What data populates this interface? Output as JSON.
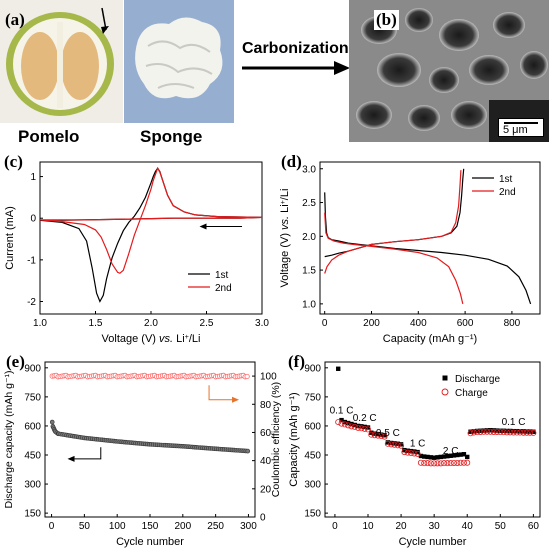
{
  "panels": {
    "a": {
      "label": "(a)",
      "caption_left": "Pomelo",
      "caption_right": "Sponge"
    },
    "arrow": {
      "text": "Carbonization"
    },
    "b": {
      "label": "(b)",
      "scale_bar": "5 μm"
    }
  },
  "chart_data": [
    {
      "id": "c",
      "type": "line",
      "panel_label": "(c)",
      "xlabel_main": "Voltage (V) ",
      "xlabel_vs": "vs.",
      "xlabel_tail": " Li",
      "xlabel_sup": "+",
      "xlabel_end": "/Li",
      "ylabel": "Current (mA)",
      "xlim": [
        1.0,
        3.0
      ],
      "ylim": [
        -2.3,
        1.35
      ],
      "xticks": [
        1.0,
        1.5,
        2.0,
        2.5,
        3.0
      ],
      "xtick_labels": [
        "1.0",
        "1.5",
        "2.0",
        "2.5",
        "3.0"
      ],
      "yticks": [
        -2,
        -1,
        0,
        1
      ],
      "ytick_labels": [
        "-2",
        "-1",
        "0",
        "1"
      ],
      "legend": "bottom-right",
      "scan_direction_arrow": "left",
      "series": [
        {
          "name": "1st",
          "color": "#000000",
          "x": [
            1.0,
            1.2,
            1.35,
            1.42,
            1.47,
            1.51,
            1.54,
            1.57,
            1.6,
            1.65,
            1.7,
            1.75,
            1.8,
            1.85,
            1.9,
            1.95,
            2.0,
            2.02,
            2.04,
            2.06,
            2.08,
            2.1,
            2.15,
            2.2,
            2.3,
            2.4,
            2.6,
            2.8,
            3.0,
            2.8,
            2.6,
            2.4,
            2.2,
            2.0,
            1.8,
            1.6,
            1.4,
            1.2,
            1.0
          ],
          "y": [
            -0.05,
            -0.1,
            -0.25,
            -0.55,
            -1.2,
            -1.8,
            -2.0,
            -1.85,
            -1.45,
            -0.95,
            -0.6,
            -0.3,
            -0.1,
            0.05,
            0.25,
            0.5,
            0.85,
            1.0,
            1.12,
            1.2,
            1.12,
            0.95,
            0.55,
            0.3,
            0.15,
            0.08,
            0.04,
            0.03,
            0.02,
            0.0,
            0.0,
            0.0,
            0.0,
            -0.01,
            -0.02,
            -0.03,
            -0.04,
            -0.05,
            -0.05
          ]
        },
        {
          "name": "2nd",
          "color": "#e41a1c",
          "x": [
            1.0,
            1.2,
            1.4,
            1.5,
            1.55,
            1.6,
            1.65,
            1.7,
            1.72,
            1.75,
            1.8,
            1.85,
            1.9,
            1.95,
            2.0,
            2.02,
            2.04,
            2.06,
            2.08,
            2.1,
            2.15,
            2.2,
            2.3,
            2.4,
            2.6,
            2.8,
            3.0,
            2.8,
            2.6,
            2.4,
            2.2,
            2.0,
            1.8,
            1.6,
            1.4,
            1.2,
            1.0
          ],
          "y": [
            -0.04,
            -0.08,
            -0.15,
            -0.28,
            -0.45,
            -0.75,
            -1.1,
            -1.3,
            -1.32,
            -1.25,
            -0.85,
            -0.4,
            -0.05,
            0.3,
            0.7,
            0.9,
            1.05,
            1.2,
            1.1,
            0.95,
            0.55,
            0.3,
            0.15,
            0.08,
            0.04,
            0.03,
            0.02,
            0.0,
            0.0,
            0.0,
            0.0,
            -0.01,
            -0.02,
            -0.03,
            -0.04,
            -0.04,
            -0.04
          ]
        }
      ]
    },
    {
      "id": "d",
      "type": "line",
      "panel_label": "(d)",
      "xlabel": "Capacity (mAh g⁻¹)",
      "ylabel_main": "Voltage (V) ",
      "ylabel_vs": "vs.",
      "ylabel_tail": " Li",
      "ylabel_sup": "+",
      "ylabel_end": "/Li",
      "xlim": [
        -20,
        920
      ],
      "ylim": [
        0.85,
        3.1
      ],
      "xticks": [
        0,
        200,
        400,
        600,
        800
      ],
      "xtick_labels": [
        "0",
        "200",
        "400",
        "600",
        "800"
      ],
      "yticks": [
        1.0,
        1.5,
        2.0,
        2.5,
        3.0
      ],
      "ytick_labels": [
        "1.0",
        "1.5",
        "2.0",
        "2.5",
        "3.0"
      ],
      "legend": "top-right",
      "series": [
        {
          "name": "1st",
          "color": "#000000",
          "discharge_x": [
            0,
            3,
            8,
            15,
            30,
            60,
            100,
            200,
            300,
            400,
            500,
            600,
            700,
            780,
            830,
            860,
            880
          ],
          "discharge_y": [
            2.65,
            2.3,
            2.05,
            1.98,
            1.95,
            1.93,
            1.9,
            1.86,
            1.82,
            1.79,
            1.76,
            1.72,
            1.66,
            1.56,
            1.4,
            1.2,
            1.0
          ],
          "charge_x": [
            0,
            30,
            60,
            100,
            150,
            200,
            300,
            400,
            500,
            540,
            565,
            578,
            585,
            590,
            594
          ],
          "charge_y": [
            1.7,
            1.72,
            1.75,
            1.78,
            1.83,
            1.88,
            1.92,
            1.95,
            2.0,
            2.05,
            2.15,
            2.35,
            2.6,
            2.85,
            3.0
          ]
        },
        {
          "name": "2nd",
          "color": "#e41a1c",
          "discharge_x": [
            0,
            5,
            15,
            40,
            80,
            120,
            200,
            300,
            400,
            480,
            530,
            560,
            580,
            590
          ],
          "discharge_y": [
            2.35,
            2.05,
            1.97,
            1.93,
            1.9,
            1.88,
            1.85,
            1.81,
            1.76,
            1.68,
            1.55,
            1.35,
            1.15,
            1.0
          ],
          "charge_x": [
            0,
            10,
            30,
            60,
            100,
            150,
            200,
            300,
            400,
            500,
            540,
            560,
            572,
            578,
            582
          ],
          "charge_y": [
            1.45,
            1.55,
            1.65,
            1.72,
            1.78,
            1.83,
            1.88,
            1.92,
            1.95,
            2.0,
            2.06,
            2.2,
            2.45,
            2.75,
            2.98
          ]
        }
      ]
    },
    {
      "id": "e",
      "type": "scatter",
      "panel_label": "(e)",
      "xlabel": "Cycle number",
      "ylabel_left": "Discharge capacity (mAh g⁻¹)",
      "ylabel_right": "Coulombic efficiency (%)",
      "xlim": [
        -10,
        310
      ],
      "ylim_left": [
        130,
        930
      ],
      "ylim_right": [
        0,
        110
      ],
      "xticks": [
        0,
        50,
        100,
        150,
        200,
        250,
        300
      ],
      "xtick_labels": [
        "0",
        "50",
        "100",
        "150",
        "200",
        "250",
        "300"
      ],
      "yticks_left": [
        150,
        300,
        450,
        600,
        750,
        900
      ],
      "ytick_labels_left": [
        "150",
        "300",
        "450",
        "600",
        "750",
        "900"
      ],
      "yticks_right": [
        0,
        20,
        40,
        60,
        80,
        100
      ],
      "ytick_labels_right": [
        "0",
        "20",
        "40",
        "60",
        "80",
        "100"
      ],
      "series": [
        {
          "name": "Discharge capacity",
          "color": "#333333",
          "axis": "left",
          "first_cycles_x": [
            1,
            2,
            3,
            4,
            5,
            6,
            8,
            10
          ],
          "first_cycles_y": [
            620,
            598,
            590,
            582,
            575,
            570,
            565,
            560
          ],
          "trend_x": [
            10,
            50,
            100,
            150,
            200,
            250,
            300
          ],
          "trend_y": [
            560,
            538,
            520,
            505,
            495,
            482,
            470
          ]
        },
        {
          "name": "Coulombic efficiency",
          "color": "#ff6b6b",
          "axis": "right",
          "value": 100
        }
      ],
      "axis_arrows": [
        "left",
        "right"
      ]
    },
    {
      "id": "f",
      "type": "scatter",
      "panel_label": "(f)",
      "xlabel": "Cycle number",
      "ylabel": "Capacity (mAh g⁻¹)",
      "xlim": [
        -3,
        62
      ],
      "ylim": [
        130,
        930
      ],
      "xticks": [
        0,
        10,
        20,
        30,
        40,
        50,
        60
      ],
      "xtick_labels": [
        "0",
        "10",
        "20",
        "30",
        "40",
        "50",
        "60"
      ],
      "yticks": [
        150,
        300,
        450,
        600,
        750,
        900
      ],
      "ytick_labels": [
        "150",
        "300",
        "450",
        "600",
        "750",
        "900"
      ],
      "legend": "top-right",
      "rate_labels": [
        {
          "text": "0.1 C",
          "cycle": 2,
          "cap": 665
        },
        {
          "text": "0.2 C",
          "cycle": 9,
          "cap": 625
        },
        {
          "text": "0.5 C",
          "cycle": 16,
          "cap": 548
        },
        {
          "text": "1 C",
          "cycle": 25,
          "cap": 495
        },
        {
          "text": "2 C",
          "cycle": 35,
          "cap": 455
        },
        {
          "text": "0.1 C",
          "cycle": 54,
          "cap": 605
        }
      ],
      "series": [
        {
          "name": "Discharge",
          "color": "#000000",
          "marker": "square",
          "x": [
            1,
            2,
            3,
            4,
            5,
            6,
            7,
            8,
            9,
            10,
            11,
            12,
            13,
            14,
            15,
            16,
            17,
            18,
            19,
            20,
            21,
            22,
            23,
            24,
            25,
            26,
            27,
            28,
            29,
            30,
            31,
            32,
            33,
            34,
            35,
            36,
            37,
            38,
            39,
            40,
            41,
            42,
            43,
            44,
            45,
            46,
            47,
            48,
            49,
            50,
            51,
            52,
            53,
            54,
            55,
            56,
            57,
            58,
            59,
            60
          ],
          "y": [
            895,
            630,
            620,
            615,
            610,
            605,
            600,
            598,
            595,
            592,
            565,
            560,
            558,
            555,
            552,
            515,
            512,
            510,
            508,
            505,
            475,
            472,
            470,
            468,
            465,
            445,
            442,
            440,
            438,
            436,
            438,
            440,
            442,
            444,
            446,
            448,
            450,
            452,
            454,
            440,
            570,
            572,
            574,
            575,
            576,
            577,
            578,
            577,
            576,
            575,
            575,
            574,
            574,
            573,
            573,
            572,
            572,
            571,
            571,
            570
          ]
        },
        {
          "name": "Charge",
          "color": "#e41a1c",
          "marker": "circle",
          "x": [
            1,
            2,
            3,
            4,
            5,
            6,
            7,
            8,
            9,
            10,
            11,
            12,
            13,
            14,
            15,
            16,
            17,
            18,
            19,
            20,
            21,
            22,
            23,
            24,
            25,
            26,
            27,
            28,
            29,
            30,
            31,
            32,
            33,
            34,
            35,
            36,
            37,
            38,
            39,
            40,
            41,
            42,
            43,
            44,
            45,
            46,
            47,
            48,
            49,
            50,
            51,
            52,
            53,
            54,
            55,
            56,
            57,
            58,
            59,
            60
          ],
          "y": [
            620,
            612,
            608,
            603,
            598,
            595,
            590,
            588,
            585,
            582,
            555,
            552,
            550,
            548,
            545,
            508,
            505,
            503,
            500,
            498,
            465,
            462,
            460,
            458,
            456,
            410,
            408,
            408,
            407,
            407,
            407,
            407,
            408,
            408,
            408,
            409,
            409,
            410,
            410,
            410,
            562,
            566,
            568,
            569,
            570,
            570,
            570,
            569,
            569,
            568,
            568,
            567,
            567,
            566,
            566,
            566,
            565,
            565,
            565,
            564
          ]
        }
      ]
    }
  ]
}
